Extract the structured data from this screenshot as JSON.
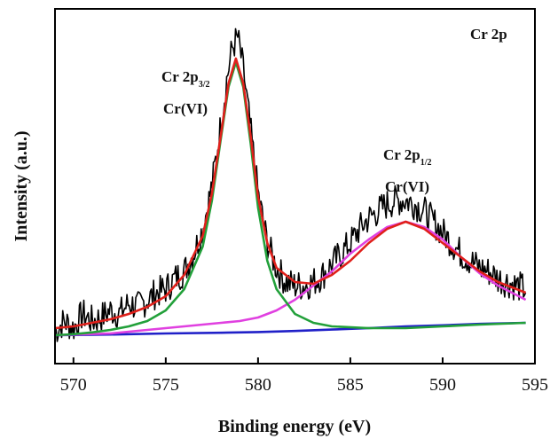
{
  "chart_data": {
    "type": "line",
    "title": "",
    "panel_label": "Cr 2p",
    "xlabel": "Binding energy (eV)",
    "ylabel": "Intensity (a.u.)",
    "xlim": [
      569,
      595
    ],
    "ylim": [
      0,
      1
    ],
    "x_ticks": [
      570,
      575,
      580,
      585,
      590,
      595
    ],
    "y_ticks_shown": false,
    "grid": false,
    "legend": "none",
    "annotations": [
      {
        "main": "Cr 2p",
        "sub": "3/2",
        "line2": "Cr(VI)",
        "at_x": 578.8
      },
      {
        "main": "Cr 2p",
        "sub": "1/2",
        "line2": "Cr(VI)",
        "at_x": 588.0
      }
    ],
    "series": [
      {
        "role": "raw",
        "color": "#000000",
        "x": [
          569.0,
          569.5,
          570.0,
          570.5,
          571.0,
          571.5,
          572.0,
          572.5,
          573.0,
          573.5,
          574.0,
          574.5,
          575.0,
          575.5,
          576.0,
          576.5,
          577.0,
          577.5,
          578.0,
          578.3,
          578.6,
          578.9,
          579.2,
          579.5,
          580.0,
          580.5,
          581.0,
          581.5,
          582.0,
          582.5,
          583.0,
          583.5,
          584.0,
          584.5,
          585.0,
          585.5,
          586.0,
          586.5,
          587.0,
          587.5,
          588.0,
          588.5,
          589.0,
          589.5,
          590.0,
          590.5,
          591.0,
          591.5,
          592.0,
          592.5,
          593.0,
          593.5,
          594.0,
          594.5
        ],
        "y": [
          0.09,
          0.12,
          0.1,
          0.14,
          0.12,
          0.13,
          0.15,
          0.14,
          0.17,
          0.16,
          0.18,
          0.2,
          0.21,
          0.24,
          0.26,
          0.31,
          0.38,
          0.5,
          0.68,
          0.8,
          0.89,
          0.92,
          0.83,
          0.7,
          0.48,
          0.34,
          0.27,
          0.23,
          0.22,
          0.22,
          0.23,
          0.25,
          0.28,
          0.31,
          0.34,
          0.38,
          0.41,
          0.43,
          0.45,
          0.46,
          0.46,
          0.45,
          0.43,
          0.4,
          0.37,
          0.34,
          0.31,
          0.29,
          0.27,
          0.26,
          0.24,
          0.23,
          0.22,
          0.21
        ]
      },
      {
        "role": "envelope",
        "color": "#e0201b",
        "x": [
          569.0,
          570.0,
          571.0,
          572.0,
          573.0,
          574.0,
          575.0,
          576.0,
          577.0,
          577.5,
          578.0,
          578.4,
          578.8,
          579.2,
          579.6,
          580.0,
          580.5,
          581.0,
          582.0,
          583.0,
          584.0,
          585.0,
          586.0,
          587.0,
          588.0,
          589.0,
          590.0,
          591.0,
          592.0,
          593.0,
          594.5
        ],
        "y": [
          0.1,
          0.105,
          0.115,
          0.125,
          0.14,
          0.16,
          0.19,
          0.25,
          0.36,
          0.48,
          0.65,
          0.79,
          0.86,
          0.79,
          0.64,
          0.47,
          0.34,
          0.27,
          0.23,
          0.225,
          0.25,
          0.29,
          0.34,
          0.38,
          0.4,
          0.38,
          0.34,
          0.3,
          0.26,
          0.23,
          0.2
        ]
      },
      {
        "role": "Cr 2p3/2 component",
        "color": "#22a03a",
        "x": [
          569.0,
          570.0,
          571.0,
          572.0,
          573.0,
          574.0,
          575.0,
          576.0,
          577.0,
          577.5,
          578.0,
          578.4,
          578.8,
          579.2,
          579.6,
          580.0,
          580.5,
          581.0,
          582.0,
          583.0,
          584.0,
          586.0,
          588.0,
          590.0,
          592.0,
          594.5
        ],
        "y": [
          0.08,
          0.083,
          0.088,
          0.095,
          0.105,
          0.12,
          0.15,
          0.21,
          0.33,
          0.46,
          0.64,
          0.78,
          0.85,
          0.78,
          0.62,
          0.44,
          0.29,
          0.21,
          0.14,
          0.115,
          0.105,
          0.1,
          0.1,
          0.105,
          0.11,
          0.115
        ]
      },
      {
        "role": "Cr 2p1/2 component",
        "color": "#e040e0",
        "x": [
          569.0,
          572.0,
          575.0,
          577.0,
          578.0,
          579.0,
          580.0,
          581.0,
          582.0,
          583.0,
          584.0,
          585.0,
          586.0,
          587.0,
          588.0,
          589.0,
          590.0,
          591.0,
          592.0,
          593.0,
          594.5
        ],
        "y": [
          0.08,
          0.085,
          0.1,
          0.11,
          0.115,
          0.12,
          0.13,
          0.15,
          0.18,
          0.22,
          0.26,
          0.31,
          0.35,
          0.385,
          0.4,
          0.385,
          0.35,
          0.3,
          0.255,
          0.22,
          0.18
        ]
      },
      {
        "role": "background",
        "color": "#2020c8",
        "x": [
          569.0,
          572.0,
          575.0,
          578.0,
          580.0,
          582.0,
          584.0,
          586.0,
          588.0,
          590.0,
          592.0,
          594.5
        ],
        "y": [
          0.08,
          0.082,
          0.085,
          0.087,
          0.089,
          0.092,
          0.096,
          0.1,
          0.105,
          0.108,
          0.112,
          0.115
        ]
      }
    ]
  }
}
